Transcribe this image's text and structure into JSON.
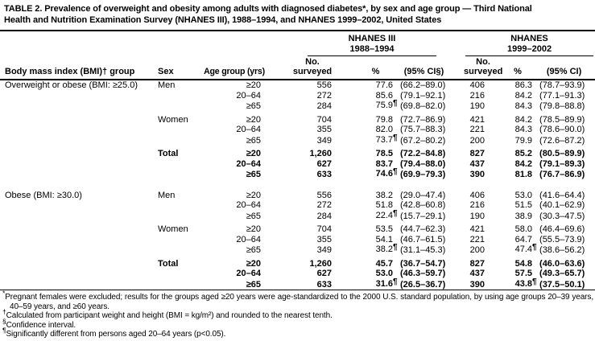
{
  "title": {
    "line1": "TABLE 2. Prevalence of overweight and obesity among adults with diagnosed diabetes*, by sex and age group — Third National",
    "line2": "Health and Nutrition Examination Survey (NHANES III), 1988–1994, and NHANES 1999–2002, United States"
  },
  "header": {
    "group1": {
      "name": "NHANES III",
      "years": "1988–1994"
    },
    "group2": {
      "name": "NHANES",
      "years": "1999–2002"
    },
    "col_bmi": "Body mass index (BMI)† group",
    "col_sex": "Sex",
    "col_age": "Age group (yrs)",
    "col_no": "No.",
    "col_surveyed": "surveyed",
    "col_pct": "%",
    "col_ci1": "(95% CI§)",
    "col_ci2": "(95% CI)"
  },
  "table": {
    "rows": [
      {
        "cls": "r",
        "bmi": "Overweight or obese (BMI: ≥25.0)",
        "sex": "Men",
        "age": "≥20",
        "n1": "556",
        "p1": "77.6",
        "m1": "",
        "ci1": "(66.2–89.0)",
        "n2": "406",
        "p2": "86.3",
        "m2": "",
        "ci2": "(78.7–93.9)"
      },
      {
        "cls": "r",
        "bmi": "",
        "sex": "",
        "age": "20–64",
        "n1": "272",
        "p1": "85.6",
        "m1": "",
        "ci1": "(79.1–92.1)",
        "n2": "216",
        "p2": "84.2",
        "m2": "",
        "ci2": "(77.1–91.3)"
      },
      {
        "cls": "r",
        "bmi": "",
        "sex": "",
        "age": "≥65",
        "n1": "284",
        "p1": "75.9",
        "m1": "¶",
        "ci1": "(69.8–82.0)",
        "n2": "190",
        "p2": "84.3",
        "m2": "",
        "ci2": "(79.8–88.8)"
      },
      {
        "cls": "r gap",
        "bmi": "",
        "sex": "Women",
        "age": "≥20",
        "n1": "704",
        "p1": "79.8",
        "m1": "",
        "ci1": "(72.7–86.9)",
        "n2": "421",
        "p2": "84.2",
        "m2": "",
        "ci2": "(78.5–89.9)"
      },
      {
        "cls": "r",
        "bmi": "",
        "sex": "",
        "age": "20–64",
        "n1": "355",
        "p1": "82.0",
        "m1": "",
        "ci1": "(75.7–88.3)",
        "n2": "221",
        "p2": "84.3",
        "m2": "",
        "ci2": "(78.6–90.0)"
      },
      {
        "cls": "r",
        "bmi": "",
        "sex": "",
        "age": "≥65",
        "n1": "349",
        "p1": "73.7",
        "m1": "¶",
        "ci1": "(67.2–80.2)",
        "n2": "200",
        "p2": "79.9",
        "m2": "",
        "ci2": "(72.6–87.2)"
      },
      {
        "cls": "r gap bold",
        "bmi": "",
        "sex": "Total",
        "age": "≥20",
        "n1": "1,260",
        "p1": "78.5",
        "m1": "",
        "ci1": "(72.2–84.8)",
        "n2": "827",
        "p2": "85.2",
        "m2": "",
        "ci2": "(80.5–89.9)"
      },
      {
        "cls": "r bold",
        "bmi": "",
        "sex": "",
        "age": "20–64",
        "n1": "627",
        "p1": "83.7",
        "m1": "",
        "ci1": "(79.4–88.0)",
        "n2": "437",
        "p2": "84.2",
        "m2": "",
        "ci2": "(79.1–89.3)"
      },
      {
        "cls": "r bold",
        "bmi": "",
        "sex": "",
        "age": "≥65",
        "n1": "633",
        "p1": "74.6",
        "m1": "¶",
        "ci1": "(69.9–79.3)",
        "n2": "390",
        "p2": "81.8",
        "m2": "",
        "ci2": "(76.7–86.9)"
      },
      {
        "cls": "r section",
        "bmi": "Obese (BMI: ≥30.0)",
        "sex": "Men",
        "age": "≥20",
        "n1": "556",
        "p1": "38.2",
        "m1": "",
        "ci1": "(29.0–47.4)",
        "n2": "406",
        "p2": "53.0",
        "m2": "",
        "ci2": "(41.6–64.4)"
      },
      {
        "cls": "r",
        "bmi": "",
        "sex": "",
        "age": "20–64",
        "n1": "272",
        "p1": "51.8",
        "m1": "",
        "ci1": "(42.8–60.8)",
        "n2": "216",
        "p2": "51.5",
        "m2": "",
        "ci2": "(40.1–62.9)"
      },
      {
        "cls": "r",
        "bmi": "",
        "sex": "",
        "age": "≥65",
        "n1": "284",
        "p1": "22.4",
        "m1": "¶",
        "ci1": "(15.7–29.1)",
        "n2": "190",
        "p2": "38.9",
        "m2": "",
        "ci2": "(30.3–47.5)"
      },
      {
        "cls": "r gap",
        "bmi": "",
        "sex": "Women",
        "age": "≥20",
        "n1": "704",
        "p1": "53.5",
        "m1": "",
        "ci1": "(44.7–62.3)",
        "n2": "421",
        "p2": "58.0",
        "m2": "",
        "ci2": "(46.4–69.6)"
      },
      {
        "cls": "r",
        "bmi": "",
        "sex": "",
        "age": "20–64",
        "n1": "355",
        "p1": "54.1",
        "m1": "",
        "ci1": "(46.7–61.5)",
        "n2": "221",
        "p2": "64.7",
        "m2": "",
        "ci2": "(55.5–73.9)"
      },
      {
        "cls": "r",
        "bmi": "",
        "sex": "",
        "age": "≥65",
        "n1": "349",
        "p1": "38.2",
        "m1": "¶",
        "ci1": "(31.1–45.3)",
        "n2": "200",
        "p2": "47.4",
        "m2": "¶",
        "ci2": "(38.6–56.2)"
      },
      {
        "cls": "r gap bold",
        "bmi": "",
        "sex": "Total",
        "age": "≥20",
        "n1": "1,260",
        "p1": "45.7",
        "m1": "",
        "ci1": "(36.7–54.7)",
        "n2": "827",
        "p2": "54.8",
        "m2": "",
        "ci2": "(46.0–63.6)"
      },
      {
        "cls": "r bold",
        "bmi": "",
        "sex": "",
        "age": "20–64",
        "n1": "627",
        "p1": "53.0",
        "m1": "",
        "ci1": "(46.3–59.7)",
        "n2": "437",
        "p2": "57.5",
        "m2": "",
        "ci2": "(49.3–65.7)"
      },
      {
        "cls": "r bold",
        "bmi": "",
        "sex": "",
        "age": "≥65",
        "n1": "633",
        "p1": "31.6",
        "m1": "¶",
        "ci1": "(26.5–36.7)",
        "n2": "390",
        "p2": "43.8",
        "m2": "¶",
        "ci2": "(37.5–50.1)"
      }
    ]
  },
  "footnotes": [
    {
      "cls": "fn just",
      "marker": "*",
      "text": "Pregnant females were excluded; results for the groups aged ≥20 years were age-standardized to the 2000 U.S. standard population, by using age groups 20–39 years, 40–59 years, and ≥60 years."
    },
    {
      "cls": "fn",
      "marker": "†",
      "text": "Calculated from participant weight and height (BMI = kg/m²) and rounded to the nearest tenth."
    },
    {
      "cls": "fn",
      "marker": "§",
      "text": "Confidence interval."
    },
    {
      "cls": "fn",
      "marker": "¶",
      "text": "Significantly different from persons aged 20–64 years (p<0.05)."
    }
  ]
}
